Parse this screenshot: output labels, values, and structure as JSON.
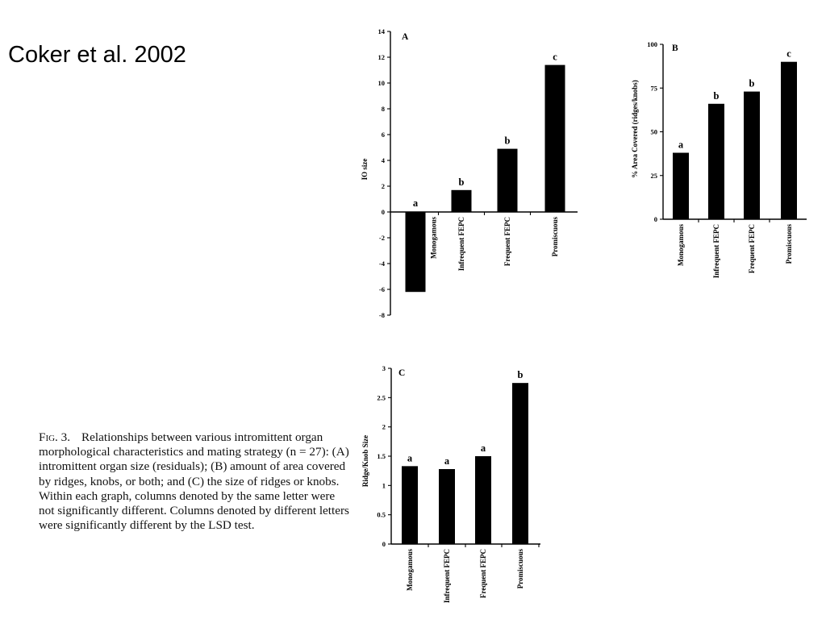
{
  "slide": {
    "title": "Coker et al. 2002"
  },
  "caption": {
    "figure_label": "Fig. 3.",
    "text": "Relationships between various intromittent organ morphological characteristics and mating strategy (n = 27): (A) intromittent organ size (residuals); (B) amount of area covered by ridges, knobs, or both; and (C) the size of ridges or knobs. Within each graph, columns denoted by the same letter were not significantly different. Columns denoted by different letters were significantly different by the LSD test."
  },
  "chart_data": [
    {
      "panel": "A",
      "type": "bar",
      "ylabel": "IO size",
      "ylim": [
        -8,
        14
      ],
      "yticks": [
        "14",
        "12",
        "10",
        "8",
        "6",
        "4",
        "2",
        "0",
        "-2",
        "-4",
        "-6",
        "-8"
      ],
      "ytick_values": [
        14,
        12,
        10,
        8,
        6,
        4,
        2,
        0,
        -2,
        -4,
        -6,
        -8
      ],
      "categories": [
        "Monogamous",
        "Infrequent FEPC",
        "Frequent FEPC",
        "Promiscuous"
      ],
      "values": [
        -6.2,
        1.7,
        4.9,
        11.4
      ],
      "significance_letters": [
        "a",
        "b",
        "b",
        "c"
      ]
    },
    {
      "panel": "B",
      "type": "bar",
      "ylabel": "% Area Covered (ridges/knobs)",
      "ylim": [
        0,
        100
      ],
      "yticks": [
        "100",
        "75",
        "50",
        "25",
        "0"
      ],
      "ytick_values": [
        100,
        75,
        50,
        25,
        0
      ],
      "categories": [
        "Monogamous",
        "Infrequent FEPC",
        "Frequent FEPC",
        "Promiscuous"
      ],
      "values": [
        38,
        66,
        73,
        90
      ],
      "significance_letters": [
        "a",
        "b",
        "b",
        "c"
      ]
    },
    {
      "panel": "C",
      "type": "bar",
      "ylabel": "Ridge/Knob Size",
      "ylim": [
        0,
        3
      ],
      "yticks": [
        "3",
        "2.5",
        "2",
        "1.5",
        "1",
        "0.5",
        "0"
      ],
      "ytick_values": [
        3,
        2.5,
        2,
        1.5,
        1,
        0.5,
        0
      ],
      "categories": [
        "Monogamous",
        "Infrequent FEPC",
        "Frequent FEPC",
        "Promiscuous"
      ],
      "values": [
        1.33,
        1.28,
        1.5,
        2.75
      ],
      "significance_letters": [
        "a",
        "a",
        "a",
        "b"
      ]
    }
  ]
}
